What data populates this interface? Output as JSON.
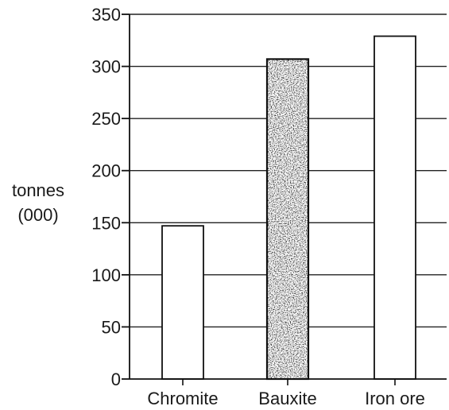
{
  "chart_data": {
    "type": "bar",
    "categories": [
      "Chromite",
      "Bauxite",
      "Iron ore"
    ],
    "values": [
      147,
      307,
      329
    ],
    "ylabel_lines": [
      "tonnes",
      "(000)"
    ],
    "ylim": [
      0,
      350
    ],
    "yticks": [
      0,
      50,
      100,
      150,
      200,
      250,
      300,
      350
    ],
    "grid": true,
    "bar_fills": [
      "plain",
      "stippled",
      "plain"
    ]
  }
}
